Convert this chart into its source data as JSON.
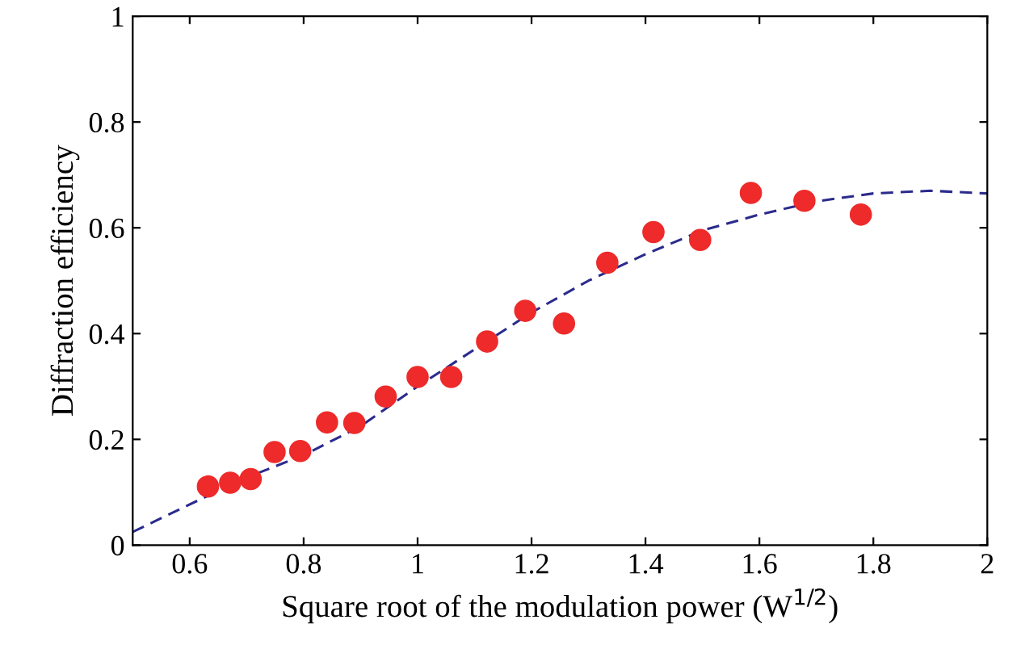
{
  "chart_data": {
    "type": "scatter",
    "xlabel": "Square root of the modulation power (W$^{1/2}$)",
    "ylabel": "Diffraction efficiency",
    "xlim": [
      0.5,
      2
    ],
    "ylim": [
      0,
      1
    ],
    "xticks": [
      0.6,
      0.8,
      1,
      1.2,
      1.4,
      1.6,
      1.8,
      2
    ],
    "yticks": [
      0,
      0.2,
      0.4,
      0.6,
      0.8,
      1
    ],
    "grid": false,
    "legend": false,
    "series": [
      {
        "color": "#ee2a2a",
        "marker": "circle",
        "x": [
          0.632,
          0.671,
          0.707,
          0.749,
          0.794,
          0.841,
          0.889,
          0.944,
          1.0,
          1.059,
          1.122,
          1.189,
          1.257,
          1.333,
          1.414,
          1.496,
          1.585,
          1.679,
          1.778
        ],
        "values": [
          0.111,
          0.118,
          0.125,
          0.176,
          0.178,
          0.232,
          0.231,
          0.281,
          0.318,
          0.318,
          0.385,
          0.443,
          0.419,
          0.534,
          0.592,
          0.577,
          0.666,
          0.651,
          0.625
        ]
      },
      {
        "type": "line",
        "color": "#2b2b8c",
        "line_style": "dashed",
        "marker": "none",
        "x": [
          0.5,
          0.6,
          0.7,
          0.8,
          0.9,
          1.0,
          1.1,
          1.2,
          1.3,
          1.4,
          1.5,
          1.6,
          1.7,
          1.8,
          1.9,
          2.0
        ],
        "values": [
          0.025,
          0.077,
          0.128,
          0.17,
          0.225,
          0.3,
          0.37,
          0.44,
          0.5,
          0.55,
          0.595,
          0.625,
          0.65,
          0.665,
          0.67,
          0.665
        ]
      }
    ]
  }
}
